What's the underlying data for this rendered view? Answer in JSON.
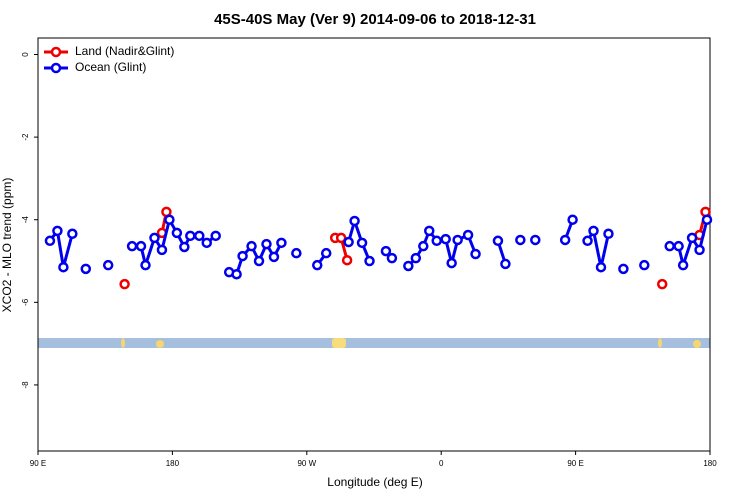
{
  "chart_data": {
    "type": "line",
    "title": "45S-40S May (Ver 9)   2014-09-06 to 2018-12-31",
    "x_label": "Longitude (deg E)",
    "y_label": "XCO2 - MLO trend (ppm)",
    "xlim": [
      90,
      540
    ],
    "ylim": [
      -9.6,
      0.4
    ],
    "xticks": [
      {
        "value": 90,
        "label": "90 E"
      },
      {
        "value": 180,
        "label": "180"
      },
      {
        "value": 270,
        "label": "90 W"
      },
      {
        "value": 360,
        "label": "0"
      },
      {
        "value": 450,
        "label": "90 E"
      },
      {
        "value": 540,
        "label": "180"
      }
    ],
    "yticks": [
      0,
      -2,
      -4,
      -6,
      -8
    ],
    "legend": "top-left",
    "series": [
      {
        "name": "Land (Nadir&Glint)",
        "color": "#ee0000",
        "x": [
          148,
          null,
          173,
          176,
          null,
          289,
          293,
          297,
          null,
          508,
          null,
          533,
          537
        ],
        "values": [
          -5.56,
          null,
          -4.32,
          -3.81,
          null,
          -4.44,
          -4.44,
          -4.98,
          null,
          -5.56,
          null,
          -4.37,
          -3.81
        ]
      },
      {
        "name": "Ocean (Glint)",
        "color": "#0000ee",
        "x": [
          98,
          103,
          107,
          113,
          null,
          122,
          null,
          137,
          null,
          153,
          159,
          162,
          168,
          173,
          178,
          183,
          188,
          192,
          198,
          203,
          209,
          null,
          218,
          223,
          227,
          233,
          238,
          243,
          248,
          253,
          null,
          263,
          null,
          277,
          283,
          null,
          298,
          302,
          307,
          312,
          null,
          323,
          327,
          null,
          338,
          343,
          348,
          352,
          357,
          363,
          367,
          371,
          378,
          383,
          null,
          398,
          403,
          null,
          413,
          null,
          423,
          null,
          443,
          448,
          null,
          458,
          462,
          467,
          472,
          null,
          482,
          null,
          496,
          null,
          513,
          519,
          522,
          528,
          533,
          538
        ],
        "values": [
          -4.51,
          -4.27,
          -5.15,
          -4.34,
          null,
          -5.19,
          null,
          -5.1,
          null,
          -4.64,
          -4.64,
          -5.1,
          -4.44,
          -4.73,
          -4.0,
          -4.32,
          -4.66,
          -4.39,
          -4.39,
          -4.56,
          -4.39,
          null,
          -5.27,
          -5.32,
          -4.88,
          -4.64,
          -5.0,
          -4.59,
          -4.9,
          -4.56,
          null,
          -4.81,
          null,
          -5.1,
          -4.81,
          null,
          -4.54,
          -4.03,
          -4.56,
          -5.0,
          null,
          -4.76,
          -4.93,
          null,
          -5.12,
          -4.93,
          -4.64,
          -4.27,
          -4.51,
          -4.47,
          -5.05,
          -4.49,
          -4.37,
          -4.83,
          null,
          -4.51,
          -5.07,
          null,
          -4.49,
          null,
          -4.49,
          null,
          -4.49,
          -4.0,
          null,
          -4.51,
          -4.27,
          -5.15,
          -4.34,
          null,
          -5.19,
          null,
          -5.1,
          null,
          -4.64,
          -4.64,
          -5.1,
          -4.44,
          -4.73,
          -4.0
        ]
      }
    ]
  }
}
